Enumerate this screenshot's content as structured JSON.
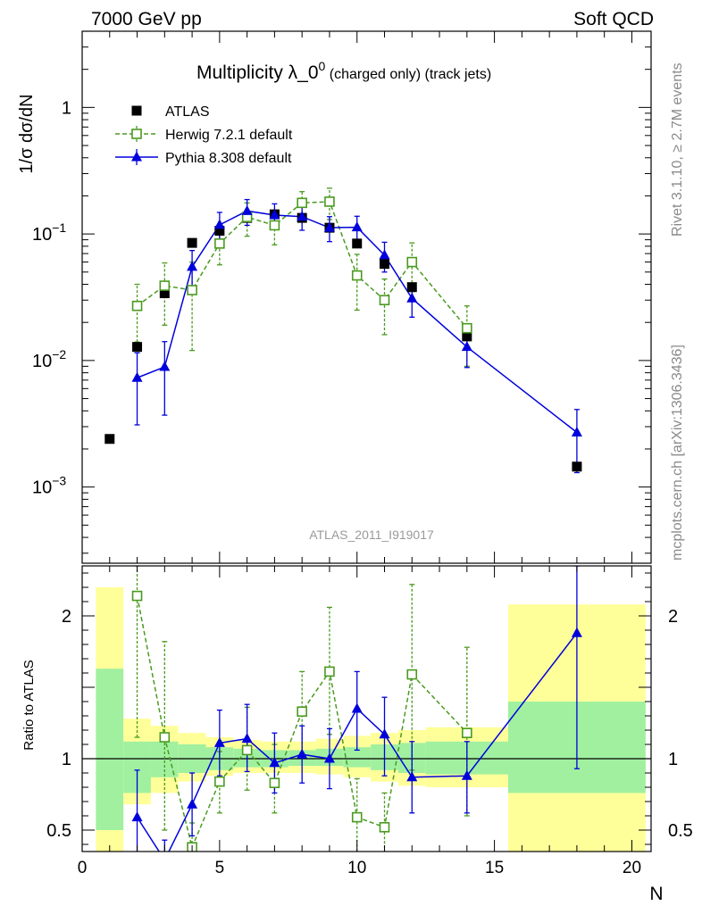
{
  "header": {
    "left": "7000 GeV pp",
    "right": "Soft QCD"
  },
  "side_labels": {
    "rivet": "Rivet 3.1.10, ≥ 2.7M events",
    "mcplots": "mcplots.cern.ch [arXiv:1306.3436]"
  },
  "chart_data": [
    {
      "type": "scatter",
      "panel": "main",
      "title_main": "Multiplicity λ_0",
      "title_sup": "0",
      "title_rest": " (charged only) (track jets)",
      "ylabel": "1/σ dσ/dN",
      "yscale": "log",
      "ylim": [
        0.00025,
        4
      ],
      "xlim": [
        0,
        20.7
      ],
      "watermark": "ATLAS_2011_I919017",
      "y_tick_labels": [
        "1",
        "10",
        "10",
        "10"
      ],
      "y_tick_exps": [
        "",
        "−1",
        "−2",
        "−3"
      ],
      "legend": {
        "placement": "top-left"
      },
      "series": [
        {
          "name": "ATLAS",
          "color": "#000000",
          "marker": "filled-square",
          "x": [
            1,
            2,
            3,
            4,
            5,
            6,
            7,
            8,
            9,
            10,
            11,
            12,
            14,
            18
          ],
          "y": [
            0.0024,
            0.0128,
            0.034,
            0.085,
            0.106,
            0.134,
            0.143,
            0.134,
            0.112,
            0.084,
            0.058,
            0.038,
            0.0155,
            0.00145
          ]
        },
        {
          "name": "Herwig 7.2.1 default",
          "color": "#4a9a1f",
          "marker": "open-square",
          "line": "dashed",
          "x": [
            2,
            3,
            4,
            5,
            6,
            7,
            8,
            9,
            10,
            11,
            12,
            14
          ],
          "y": [
            0.027,
            0.039,
            0.036,
            0.084,
            0.136,
            0.117,
            0.176,
            0.18,
            0.047,
            0.03,
            0.06,
            0.018
          ],
          "err": [
            0.013,
            0.02,
            0.024,
            0.027,
            0.04,
            0.035,
            0.04,
            0.05,
            0.022,
            0.014,
            0.025,
            0.009
          ]
        },
        {
          "name": "Pythia 8.308 default",
          "color": "#0000dd",
          "marker": "filled-triangle",
          "line": "solid",
          "x": [
            2,
            3,
            4,
            5,
            6,
            7,
            8,
            9,
            10,
            11,
            12,
            14,
            18
          ],
          "y": [
            0.0073,
            0.0089,
            0.055,
            0.118,
            0.152,
            0.141,
            0.137,
            0.112,
            0.113,
            0.068,
            0.031,
            0.0128,
            0.0027
          ],
          "err": [
            0.0042,
            0.0052,
            0.019,
            0.03,
            0.035,
            0.032,
            0.03,
            0.025,
            0.025,
            0.018,
            0.009,
            0.004,
            0.0014
          ]
        }
      ]
    },
    {
      "type": "scatter",
      "panel": "ratio",
      "ylabel": "Ratio to ATLAS",
      "xlabel": "N",
      "ylim": [
        0.35,
        2.35
      ],
      "xlim": [
        0,
        20.7
      ],
      "x_tick_labels": [
        "0",
        "5",
        "10",
        "15",
        "20"
      ],
      "y_tick_labels": [
        "0.5",
        "1",
        "2"
      ],
      "reference_line": 1,
      "bands": {
        "colors": {
          "stat": "#a0f0a0",
          "total": "#ffff99"
        },
        "x_edges": [
          [
            0.5,
            1.5
          ],
          [
            1.5,
            2.5
          ],
          [
            2.5,
            3.5
          ],
          [
            3.5,
            4.5
          ],
          [
            4.5,
            5.5
          ],
          [
            5.5,
            6.5
          ],
          [
            6.5,
            7.5
          ],
          [
            7.5,
            8.5
          ],
          [
            8.5,
            9.5
          ],
          [
            9.5,
            10.5
          ],
          [
            10.5,
            11.5
          ],
          [
            11.5,
            12.5
          ],
          [
            12.5,
            15.5
          ],
          [
            15.5,
            20.5
          ]
        ],
        "green_lo": [
          0.5,
          0.76,
          0.87,
          0.9,
          0.92,
          0.94,
          0.94,
          0.95,
          0.95,
          0.94,
          0.92,
          0.9,
          0.89,
          0.76
        ],
        "green_hi": [
          1.63,
          1.12,
          1.12,
          1.1,
          1.08,
          1.07,
          1.06,
          1.06,
          1.07,
          1.08,
          1.1,
          1.11,
          1.12,
          1.4
        ],
        "yellow_lo": [
          0.35,
          0.68,
          0.76,
          0.84,
          0.88,
          0.9,
          0.9,
          0.9,
          0.89,
          0.87,
          0.84,
          0.81,
          0.8,
          0.35
        ],
        "yellow_hi": [
          2.2,
          1.28,
          1.23,
          1.18,
          1.15,
          1.13,
          1.12,
          1.12,
          1.14,
          1.16,
          1.18,
          1.2,
          1.22,
          2.08
        ]
      },
      "series": [
        {
          "name": "Herwig 7.2.1 default",
          "color": "#4a9a1f",
          "marker": "open-square",
          "line": "dashed",
          "x": [
            2,
            3,
            4,
            5,
            6,
            7,
            8,
            9,
            10,
            11,
            12,
            14
          ],
          "y": [
            2.14,
            1.15,
            0.38,
            0.84,
            1.06,
            0.83,
            1.33,
            1.61,
            0.59,
            0.52,
            1.59,
            1.18
          ],
          "lo": [
            1.15,
            0.5,
            0.25,
            0.62,
            0.78,
            0.62,
            1.04,
            1.17,
            0.32,
            0.28,
            0.92,
            0.6
          ],
          "hi": [
            2.35,
            1.82,
            0.55,
            1.05,
            1.36,
            1.1,
            1.61,
            2.06,
            0.86,
            0.76,
            2.22,
            1.78
          ]
        },
        {
          "name": "Pythia 8.308 default",
          "color": "#0000dd",
          "marker": "filled-triangle",
          "line": "solid",
          "x": [
            2,
            3,
            4,
            5,
            6,
            7,
            8,
            9,
            10,
            11,
            12,
            14,
            18
          ],
          "y": [
            0.59,
            0.29,
            0.68,
            1.11,
            1.14,
            0.97,
            1.03,
            1.0,
            1.35,
            1.17,
            0.87,
            0.88,
            1.88
          ],
          "lo": [
            0.3,
            0.15,
            0.46,
            0.88,
            0.91,
            0.76,
            0.83,
            0.79,
            1.06,
            0.88,
            0.62,
            0.62,
            0.93
          ],
          "hi": [
            0.92,
            0.43,
            0.9,
            1.34,
            1.38,
            1.18,
            1.23,
            1.21,
            1.61,
            1.43,
            1.12,
            1.12,
            2.35
          ]
        }
      ]
    }
  ]
}
